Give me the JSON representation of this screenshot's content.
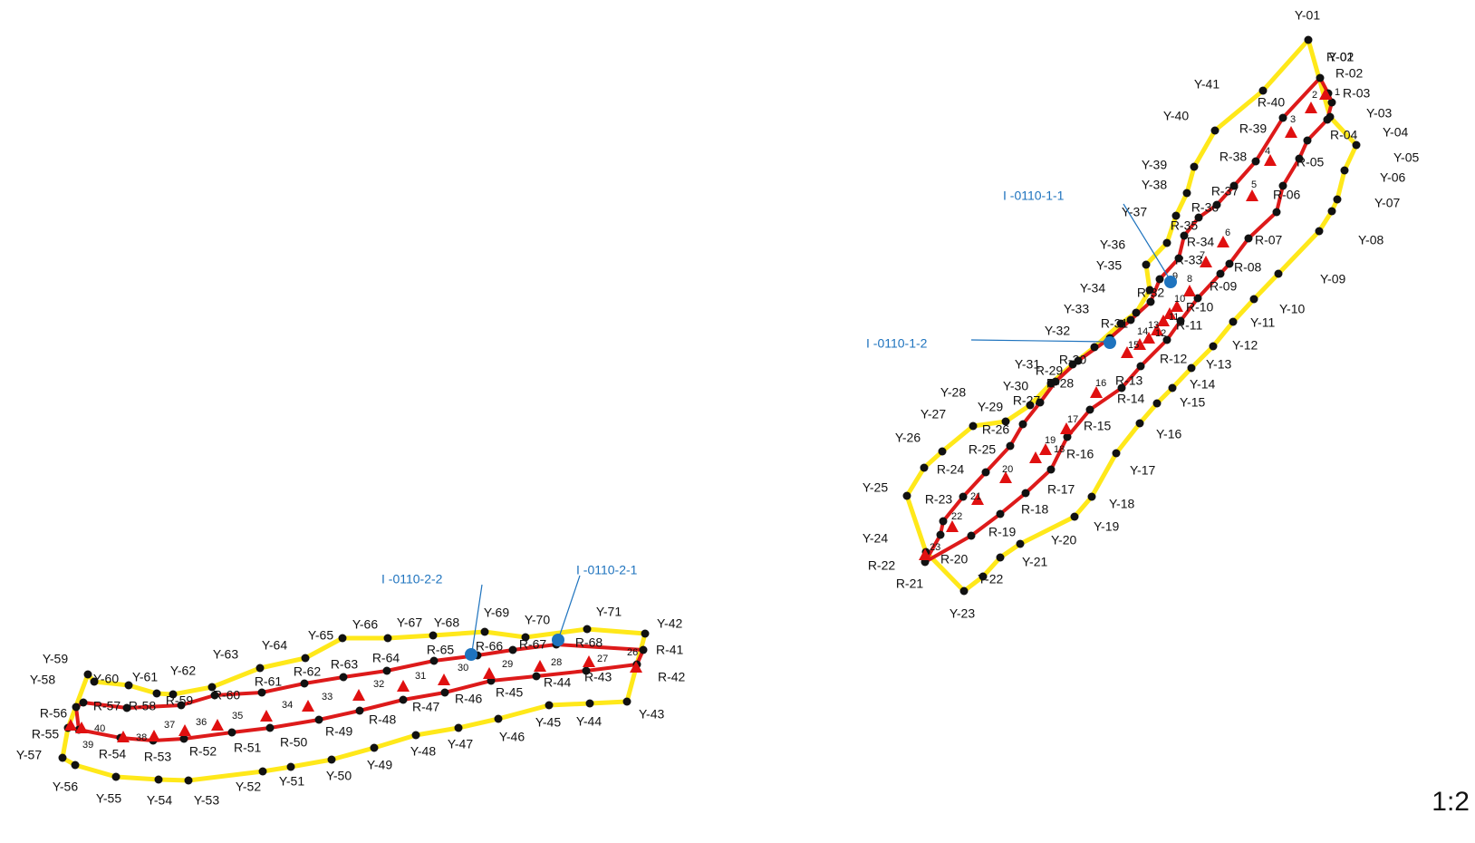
{
  "colors": {
    "outer": "#ffe81a",
    "inner": "#dd1a1a",
    "point": "#111111",
    "marker": "#e01010",
    "callout": "#1e73be"
  },
  "scale_label": "1:2",
  "callouts": [
    "I -0110-1-1",
    "I -0110-1-2",
    "I -0110-2-2",
    "I -0110-2-1"
  ],
  "group1": {
    "yellow": [
      "Y-01",
      "Y-02",
      "Y-03",
      "Y-04",
      "Y-05",
      "Y-06",
      "Y-07",
      "Y-08",
      "Y-09",
      "Y-10",
      "Y-11",
      "Y-12",
      "Y-13",
      "Y-14",
      "Y-15",
      "Y-16",
      "Y-17",
      "Y-18",
      "Y-19",
      "Y-20",
      "Y-21",
      "Y-22",
      "Y-23",
      "Y-24",
      "Y-25",
      "Y-26",
      "Y-27",
      "Y-28",
      "Y-29",
      "Y-30",
      "Y-31",
      "Y-32",
      "Y-33",
      "Y-34",
      "Y-35",
      "Y-36",
      "Y-37",
      "Y-38",
      "Y-39",
      "Y-40",
      "Y-41"
    ],
    "red": [
      "R-01",
      "R-02",
      "R-03",
      "R-04",
      "R-05",
      "R-06",
      "R-07",
      "R-08",
      "R-09",
      "R-10",
      "R-11",
      "R-12",
      "R-13",
      "R-14",
      "R-15",
      "R-16",
      "R-17",
      "R-18",
      "R-19",
      "R-20",
      "R-21",
      "R-22",
      "R-23",
      "R-24",
      "R-25",
      "R-26",
      "R-27",
      "R-28",
      "R-29",
      "R-30",
      "R-31",
      "R-32",
      "R-33",
      "R-34",
      "R-35",
      "R-36",
      "R-37",
      "R-38",
      "R-39",
      "R-40"
    ],
    "markers": [
      "1",
      "2",
      "3",
      "4",
      "5",
      "6",
      "7",
      "8",
      "9",
      "10",
      "11",
      "12",
      "13",
      "14",
      "15",
      "16",
      "17",
      "18",
      "19",
      "20",
      "21",
      "22",
      "23",
      "24",
      "25"
    ]
  },
  "group2": {
    "yellow": [
      "Y-42",
      "Y-43",
      "Y-44",
      "Y-45",
      "Y-46",
      "Y-47",
      "Y-48",
      "Y-49",
      "Y-50",
      "Y-51",
      "Y-52",
      "Y-53",
      "Y-54",
      "Y-55",
      "Y-56",
      "Y-57",
      "Y-58",
      "Y-59",
      "Y-60",
      "Y-61",
      "Y-62",
      "Y-63",
      "Y-64",
      "Y-65",
      "Y-66",
      "Y-67",
      "Y-68",
      "Y-69",
      "Y-70",
      "Y-71"
    ],
    "red": [
      "R-41",
      "R-42",
      "R-43",
      "R-44",
      "R-45",
      "R-46",
      "R-47",
      "R-48",
      "R-49",
      "R-50",
      "R-51",
      "R-52",
      "R-53",
      "R-54",
      "R-55",
      "R-56",
      "R-57",
      "R-58",
      "R-59",
      "R-60",
      "R-61",
      "R-62",
      "R-63",
      "R-64",
      "R-65",
      "R-66",
      "R-67",
      "R-68"
    ],
    "markers": [
      "26",
      "27",
      "28",
      "29",
      "30",
      "31",
      "32",
      "33",
      "34",
      "35",
      "36",
      "37",
      "38",
      "39",
      "40"
    ]
  }
}
